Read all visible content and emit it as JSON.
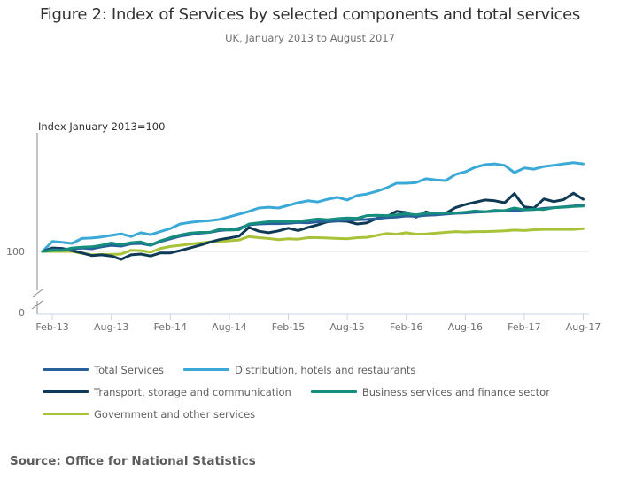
{
  "chart_data": {
    "type": "line",
    "title": "Figure 2: Index of Services by selected components and total services",
    "subtitle": "UK, January 2013 to August 2017",
    "ylabel": "Index January 2013=100",
    "xlabel": "",
    "y_tick_labels": [
      "100",
      "0"
    ],
    "y_axis_break": true,
    "ylim": [
      97,
      131
    ],
    "x_tick_labels": [
      "Feb-13",
      "Aug-13",
      "Feb-14",
      "Aug-14",
      "Feb-15",
      "Aug-15",
      "Feb-16",
      "Aug-16",
      "Feb-17",
      "Aug-17"
    ],
    "x_start": "Jan-13",
    "x_end": "Aug-17",
    "grid": "baseline at 100 only",
    "legend_position": "bottom",
    "series": [
      {
        "name": "Total Services",
        "color": "#27609b",
        "values": [
          100.0,
          100.5,
          100.4,
          100.6,
          100.9,
          100.7,
          101.2,
          101.6,
          101.4,
          102.0,
          102.1,
          101.6,
          102.6,
          103.3,
          104.0,
          104.4,
          104.8,
          105.0,
          105.5,
          105.7,
          106.1,
          107.0,
          107.2,
          107.3,
          107.3,
          107.4,
          107.6,
          107.5,
          107.8,
          107.9,
          108.0,
          108.2,
          108.3,
          108.4,
          108.6,
          108.9,
          109.0,
          109.3,
          109.2,
          109.5,
          109.6,
          109.8,
          110.0,
          110.1,
          110.3,
          110.4,
          110.5,
          110.6,
          110.7,
          110.9,
          111.0,
          111.3,
          111.5,
          111.7,
          111.9,
          112.2
        ]
      },
      {
        "name": "Distribution, hotels and restaurants",
        "color": "#3aa9d8",
        "values": [
          100.0,
          102.6,
          102.4,
          102.1,
          103.4,
          103.5,
          103.8,
          104.2,
          104.6,
          103.9,
          104.9,
          104.4,
          105.2,
          106.0,
          107.2,
          107.6,
          107.9,
          108.1,
          108.4,
          109.1,
          109.8,
          110.5,
          111.4,
          111.6,
          111.4,
          112.1,
          112.8,
          113.3,
          113.0,
          113.7,
          114.2,
          113.5,
          114.7,
          115.1,
          115.8,
          116.7,
          117.9,
          117.9,
          118.1,
          119.1,
          118.8,
          118.6,
          120.2,
          120.9,
          122.1,
          122.8,
          123.0,
          122.6,
          120.7,
          121.9,
          121.6,
          122.3,
          122.6,
          123.0,
          123.3,
          123.0
        ]
      },
      {
        "name": "Transport, storage and communication",
        "color": "#0f3a55",
        "values": [
          100.0,
          100.9,
          100.8,
          100.2,
          99.6,
          98.9,
          99.1,
          98.8,
          97.9,
          99.1,
          99.3,
          98.8,
          99.6,
          99.6,
          100.2,
          100.9,
          101.6,
          102.4,
          103.1,
          103.5,
          104.0,
          106.3,
          105.3,
          104.9,
          105.4,
          106.1,
          105.5,
          106.3,
          107.0,
          107.8,
          108.0,
          107.9,
          107.2,
          107.5,
          108.7,
          109.1,
          110.5,
          110.2,
          109.0,
          110.4,
          109.6,
          110.0,
          111.5,
          112.3,
          112.9,
          113.5,
          113.3,
          112.8,
          115.2,
          111.7,
          111.4,
          113.8,
          113.1,
          113.6,
          115.3,
          113.7
        ]
      },
      {
        "name": "Business services and finance sector",
        "color": "#168e7e",
        "values": [
          100.0,
          100.3,
          100.3,
          100.9,
          101.1,
          101.2,
          101.6,
          102.2,
          101.8,
          102.3,
          102.5,
          101.7,
          102.8,
          103.6,
          104.3,
          104.8,
          105.0,
          105.0,
          105.8,
          105.6,
          105.7,
          107.2,
          107.5,
          107.8,
          107.9,
          107.8,
          107.9,
          108.2,
          108.5,
          108.3,
          108.6,
          108.8,
          108.7,
          109.4,
          109.5,
          109.4,
          109.6,
          109.9,
          109.6,
          110.0,
          110.0,
          110.1,
          110.1,
          110.3,
          110.6,
          110.4,
          110.8,
          110.7,
          111.4,
          110.9,
          111.1,
          111.0,
          111.5,
          111.6,
          111.8,
          111.9
        ]
      },
      {
        "name": "Government and other services",
        "color": "#a8c339",
        "values": [
          100.0,
          100.0,
          100.0,
          100.0,
          99.5,
          99.1,
          99.2,
          99.2,
          99.3,
          100.3,
          100.2,
          99.8,
          100.8,
          101.3,
          101.6,
          101.9,
          102.2,
          102.5,
          102.6,
          102.8,
          103.0,
          103.9,
          103.6,
          103.4,
          103.1,
          103.3,
          103.2,
          103.6,
          103.6,
          103.5,
          103.4,
          103.3,
          103.6,
          103.7,
          104.2,
          104.7,
          104.5,
          104.9,
          104.5,
          104.6,
          104.8,
          105.0,
          105.2,
          105.1,
          105.2,
          105.2,
          105.3,
          105.4,
          105.6,
          105.5,
          105.7,
          105.8,
          105.8,
          105.8,
          105.8,
          106.0
        ]
      }
    ]
  },
  "source": "Source: Office for National Statistics"
}
